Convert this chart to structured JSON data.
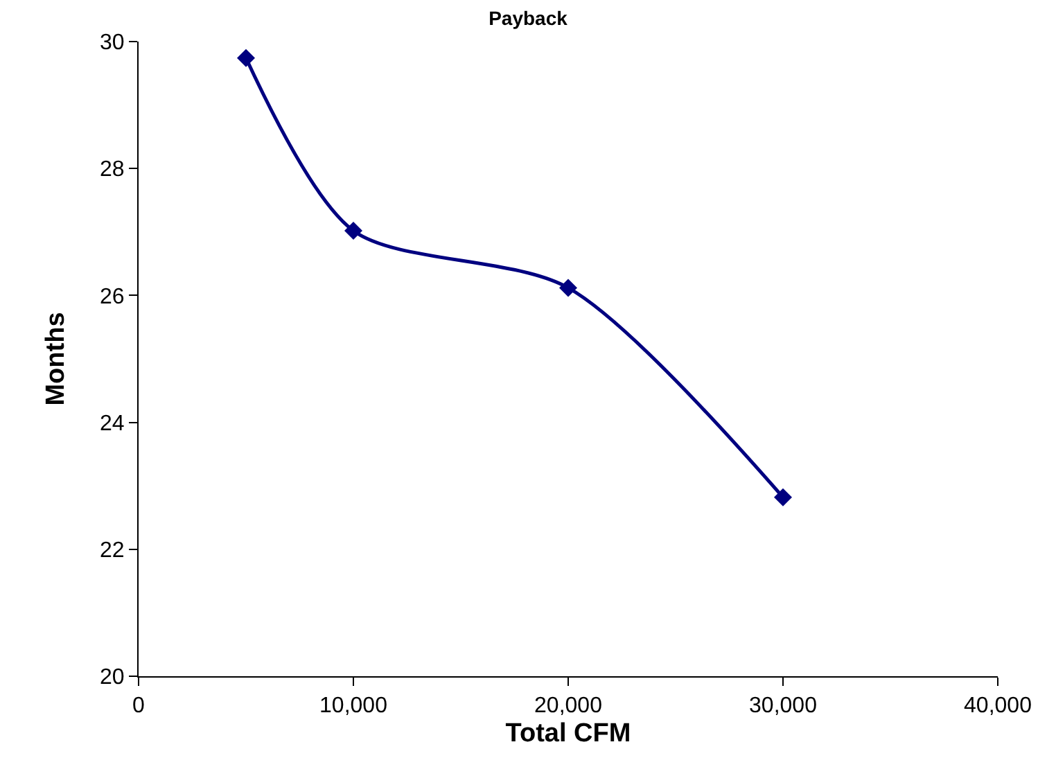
{
  "chart_data": {
    "type": "line",
    "title": "Payback",
    "xlabel": "Total CFM",
    "ylabel": "Months",
    "x": [
      5000,
      10000,
      20000,
      30000
    ],
    "series": [
      {
        "color": "#000080",
        "values": [
          29.74,
          27.02,
          26.12,
          22.82
        ]
      }
    ],
    "xlim": [
      0,
      40000
    ],
    "xticks": [
      {
        "value": 0,
        "label": "0"
      },
      {
        "value": 10000,
        "label": "10,000"
      },
      {
        "value": 20000,
        "label": "20,000"
      },
      {
        "value": 30000,
        "label": "30,000"
      },
      {
        "value": 40000,
        "label": "40,000"
      }
    ],
    "ylim": [
      20,
      30
    ],
    "yticks": [
      20,
      22,
      24,
      26,
      28,
      30
    ],
    "marker": "diamond",
    "line_style": "solid"
  }
}
